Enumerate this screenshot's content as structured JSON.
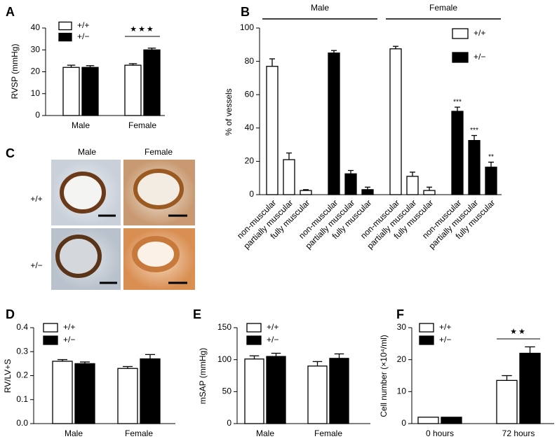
{
  "chart_data": [
    {
      "type": "bar",
      "panel": "A",
      "y_label": "RVSP (mmHg)",
      "categories": [
        "Male",
        "Female"
      ],
      "series": [
        {
          "name": "+/+",
          "color": "#ffffff",
          "values": [
            22,
            23
          ],
          "errors": [
            1,
            0.7
          ]
        },
        {
          "name": "+/−",
          "color": "#000000",
          "values": [
            22,
            30
          ],
          "errors": [
            0.8,
            0.8
          ]
        }
      ],
      "ylim": [
        0,
        40
      ],
      "yticks": [
        0,
        10,
        20,
        30,
        40
      ],
      "annotations": [
        {
          "text": "★★★",
          "category": 1
        }
      ]
    },
    {
      "type": "bar",
      "panel": "B",
      "y_label": "% of vessels",
      "groups": [
        "Male",
        "Female"
      ],
      "categories": [
        "non-muscular",
        "partially muscular",
        "fully muscular",
        "non-muscular",
        "partially muscular",
        "fully muscular",
        "non-muscular",
        "partially muscular",
        "fully muscular",
        "non-muscular",
        "partially muscular",
        "fully muscular"
      ],
      "series": [
        {
          "name": "+/+",
          "color": "#ffffff",
          "values": [
            77,
            21,
            2.5,
            null,
            null,
            null,
            87.5,
            11,
            2.5,
            null,
            null,
            null
          ],
          "errors": [
            4.5,
            4,
            0.5,
            null,
            null,
            null,
            1.5,
            2.5,
            2,
            null,
            null,
            null
          ]
        },
        {
          "name": "+/−",
          "color": "#000000",
          "values": [
            null,
            null,
            null,
            85,
            12.5,
            3,
            null,
            null,
            null,
            50,
            32.5,
            16.5
          ],
          "errors": [
            null,
            null,
            null,
            1.5,
            2,
            1.5,
            null,
            null,
            null,
            2.5,
            3,
            3
          ]
        }
      ],
      "ylim": [
        0,
        100
      ],
      "yticks": [
        0,
        20,
        40,
        60,
        80,
        100
      ],
      "annotations": [
        {
          "text": "***",
          "category": 9
        },
        {
          "text": "***",
          "category": 10
        },
        {
          "text": "**",
          "category": 11
        }
      ]
    },
    {
      "type": "bar",
      "panel": "D",
      "y_label": "RV/LV+S",
      "categories": [
        "Male",
        "Female"
      ],
      "series": [
        {
          "name": "+/+",
          "color": "#ffffff",
          "values": [
            0.26,
            0.23
          ],
          "errors": [
            0.007,
            0.008
          ]
        },
        {
          "name": "+/−",
          "color": "#000000",
          "values": [
            0.25,
            0.27
          ],
          "errors": [
            0.007,
            0.018
          ]
        }
      ],
      "ylim": [
        0,
        0.4
      ],
      "yticks": [
        {
          "value": 0,
          "label": "0.0"
        },
        0.1,
        0.2,
        0.3,
        0.4
      ]
    },
    {
      "type": "bar",
      "panel": "E",
      "y_label": "mSAP (mmHg)",
      "categories": [
        "Male",
        "Female"
      ],
      "series": [
        {
          "name": "+/+",
          "color": "#ffffff",
          "values": [
            101,
            90
          ],
          "errors": [
            5,
            7
          ]
        },
        {
          "name": "+/−",
          "color": "#000000",
          "values": [
            105,
            102
          ],
          "errors": [
            5,
            7
          ]
        }
      ],
      "ylim": [
        0,
        150
      ],
      "yticks": [
        0,
        50,
        100,
        150
      ]
    },
    {
      "type": "bar",
      "panel": "F",
      "y_label": "Cell number (×10⁴/ml)",
      "categories": [
        "0 hours",
        "72 hours"
      ],
      "series": [
        {
          "name": "+/+",
          "color": "#ffffff",
          "values": [
            2,
            13.5
          ],
          "errors": [
            0,
            1.5
          ]
        },
        {
          "name": "+/−",
          "color": "#000000",
          "values": [
            2,
            22
          ],
          "errors": [
            0,
            2
          ]
        }
      ],
      "ylim": [
        0,
        30
      ],
      "yticks": [
        0,
        10,
        20,
        30
      ],
      "annotations": [
        {
          "text": "★★",
          "category": 1
        }
      ]
    }
  ],
  "micrograph": {
    "panel": "C",
    "columns": [
      "Male",
      "Female"
    ],
    "rows": [
      "+/+",
      "+/−"
    ]
  }
}
